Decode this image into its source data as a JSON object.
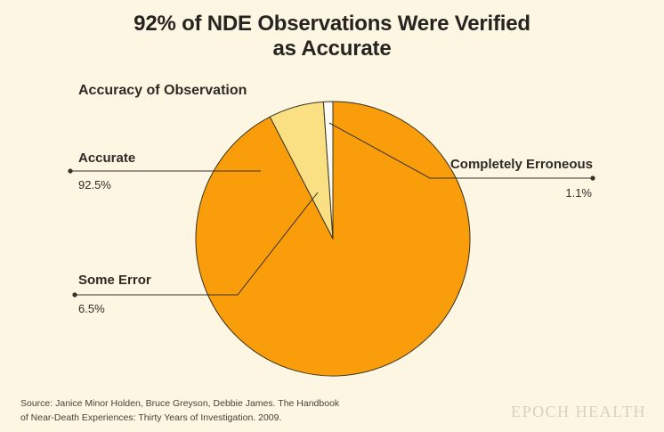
{
  "page": {
    "title_line1": "92% of NDE Observations Were Verified",
    "title_line2": "as Accurate",
    "source_line1": "Source: Janice Minor Holden, Bruce Greyson, Debbie James. The Handbook",
    "source_line2": "of Near-Death Experiences: Thirty Years of Investigation. 2009.",
    "logo_text": "EPOCH HEALTH"
  },
  "chart_data": {
    "type": "pie",
    "title": "92% of NDE Observations Were Verified as Accurate",
    "subtitle": "Accuracy of Observation",
    "direction": "clockwise",
    "start_angle_deg": 0,
    "legend_position": "callout-labels",
    "slices": [
      {
        "label": "Accurate",
        "value": 92.5,
        "display": "92.5%",
        "color": "#F99D0B"
      },
      {
        "label": "Some Error",
        "value": 6.5,
        "display": "6.5%",
        "color": "#FBDF83"
      },
      {
        "label": "Completely Erroneous",
        "value": 1.1,
        "display": "1.1%",
        "color": "#FDFCF4"
      }
    ],
    "colors": {
      "background": "#FDF6E2",
      "outline": "#3A3420",
      "leader_line": "#35312B",
      "title_text": "#262420",
      "label_text": "#2E2B26",
      "source_text": "#45423C",
      "logo_text": "#D8D1BC"
    }
  }
}
